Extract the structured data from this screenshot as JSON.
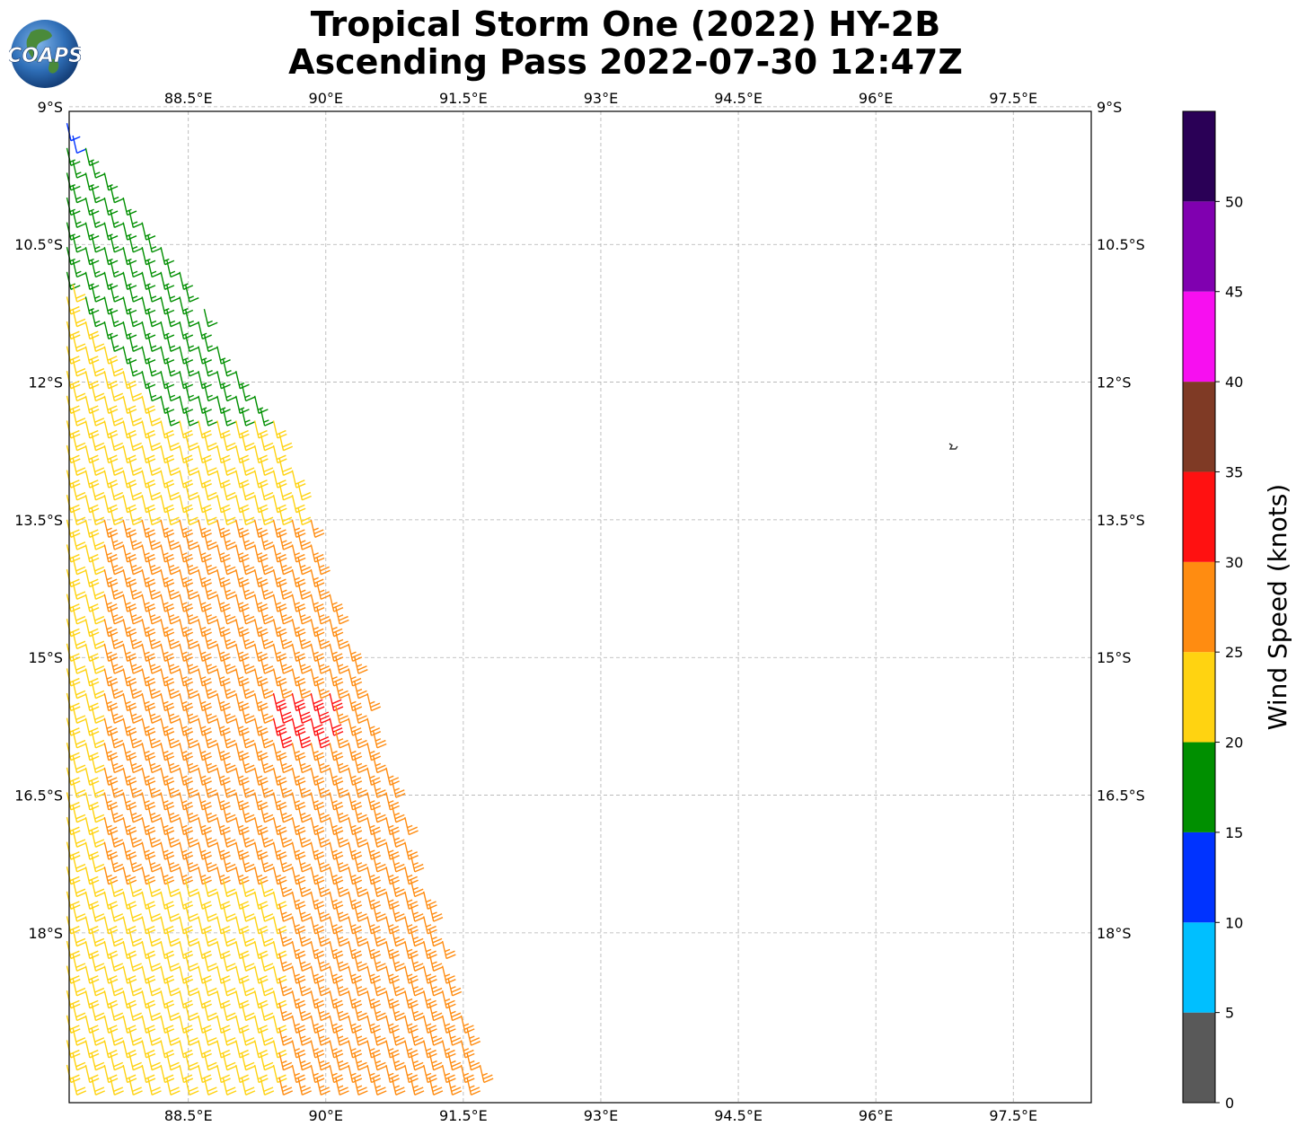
{
  "title": {
    "line1": "Tropical Storm One (2022) HY-2B",
    "line2": "Ascending Pass 2022-07-30 12:47Z"
  },
  "logo": {
    "text": "COAPS",
    "icon": "globe-logo-icon"
  },
  "map": {
    "lon_range": [
      87.2,
      98.35
    ],
    "lat_range": [
      -19.85,
      -9.05
    ],
    "lon_ticks": [
      {
        "value": 88.5,
        "label": "88.5°E"
      },
      {
        "value": 90.0,
        "label": "90°E"
      },
      {
        "value": 91.5,
        "label": "91.5°E"
      },
      {
        "value": 93.0,
        "label": "93°E"
      },
      {
        "value": 94.5,
        "label": "94.5°E"
      },
      {
        "value": 96.0,
        "label": "96°E"
      },
      {
        "value": 97.5,
        "label": "97.5°E"
      }
    ],
    "lat_ticks": [
      {
        "value": -9.0,
        "label": "9°S"
      },
      {
        "value": -10.5,
        "label": "10.5°S"
      },
      {
        "value": -12.0,
        "label": "12°S"
      },
      {
        "value": -13.5,
        "label": "13.5°S"
      },
      {
        "value": -15.0,
        "label": "15°S"
      },
      {
        "value": -16.5,
        "label": "16.5°S"
      },
      {
        "value": -18.0,
        "label": "18°S"
      }
    ],
    "grid": true,
    "swath": {
      "track_points": [
        [
          87.2,
          -9.05
        ],
        [
          89.6,
          -12.6
        ],
        [
          90.7,
          -16.0
        ],
        [
          91.85,
          -19.85
        ]
      ],
      "direction": "ascending"
    }
  },
  "colorbar": {
    "label": "Wind Speed (knots)",
    "range": [
      0,
      55
    ],
    "bins": [
      {
        "from": 0,
        "to": 5,
        "color": "#595959"
      },
      {
        "from": 5,
        "to": 10,
        "color": "#00bfff"
      },
      {
        "from": 10,
        "to": 15,
        "color": "#0033ff"
      },
      {
        "from": 15,
        "to": 20,
        "color": "#008f00"
      },
      {
        "from": 20,
        "to": 25,
        "color": "#ffd311"
      },
      {
        "from": 25,
        "to": 30,
        "color": "#ff8c11"
      },
      {
        "from": 30,
        "to": 35,
        "color": "#ff1111"
      },
      {
        "from": 35,
        "to": 40,
        "color": "#7f3a25"
      },
      {
        "from": 40,
        "to": 45,
        "color": "#f70ff0"
      },
      {
        "from": 45,
        "to": 50,
        "color": "#8000b0"
      },
      {
        "from": 50,
        "to": 55,
        "color": "#2a0056"
      }
    ],
    "ticks": [
      0,
      5,
      10,
      15,
      20,
      25,
      30,
      35,
      40,
      45,
      50
    ]
  }
}
